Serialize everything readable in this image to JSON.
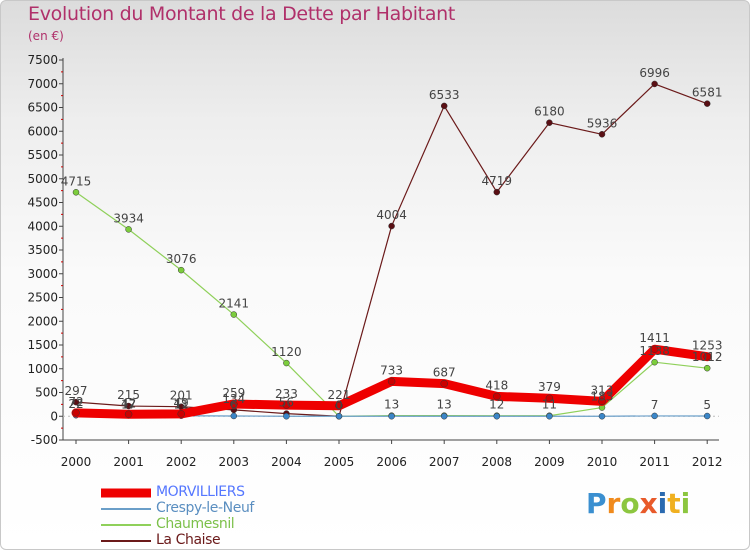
{
  "header": {
    "title": "Evolution du Montant de la Dette par Habitant",
    "unit": "(en €)"
  },
  "brand": {
    "letters": [
      "P",
      "r",
      "o",
      "x",
      "i",
      "t",
      "i"
    ],
    "colors": [
      "#3a8fd0",
      "#f08a1c",
      "#8cc63f",
      "#e85a2a",
      "#2a6ab0",
      "#f0b020",
      "#8cc63f"
    ]
  },
  "chart_data": {
    "type": "line",
    "title": "Evolution du Montant de la Dette par Habitant",
    "subtitle": "(en €)",
    "xlabel": "",
    "ylabel": "",
    "ylim": [
      -500,
      7500
    ],
    "y_ticks": [
      -500,
      0,
      500,
      1000,
      1500,
      2000,
      2500,
      3000,
      3500,
      4000,
      4500,
      5000,
      5500,
      6000,
      6500,
      7000,
      7500
    ],
    "grid": false,
    "legend_position": "bottom-left",
    "categories": [
      "2000",
      "2001",
      "2002",
      "2003",
      "2004",
      "2005",
      "2006",
      "2007",
      "2008",
      "2009",
      "2010",
      "2011",
      "2012"
    ],
    "series": [
      {
        "name": "La Chaise",
        "color": "#6b1a1a",
        "values": [
          297,
          215,
          201,
          134,
          56,
          0,
          4004,
          6533,
          4719,
          6180,
          5936,
          6996,
          6581
        ],
        "labels": [
          "297",
          "215",
          "201",
          "134",
          "56",
          "0",
          "4004",
          "6533",
          "4719",
          "6180",
          "5936",
          "6996",
          "6581"
        ]
      },
      {
        "name": "Chaumesnil",
        "color": "#8fd05a",
        "values": [
          4715,
          3934,
          3076,
          2141,
          1120,
          0,
          13,
          13,
          12,
          11,
          183,
          1138,
          1012
        ],
        "labels": [
          "4715",
          "3934",
          "3076",
          "2141",
          "1120",
          "0",
          "13",
          "13",
          "12",
          "11",
          "183",
          "1138",
          "1012"
        ]
      },
      {
        "name": "Crespy-le-Neuf",
        "color": "#6a9ec8",
        "values": [
          22,
          17,
          11,
          6,
          0,
          0,
          0,
          0,
          0,
          0,
          0,
          7,
          5
        ],
        "labels": [
          "22",
          "17",
          "11",
          "6",
          "",
          "",
          "",
          "",
          "",
          "",
          "",
          "7",
          "5"
        ]
      },
      {
        "name": "MORVILLIERS",
        "color": "#ee0000",
        "values": [
          72,
          42,
          49,
          259,
          233,
          221,
          733,
          687,
          418,
          379,
          313,
          1411,
          1253
        ],
        "labels": [
          "72",
          "42",
          "49",
          "259",
          "233",
          "221",
          "733",
          "687",
          "418",
          "379",
          "313",
          "1411",
          "1253"
        ]
      }
    ],
    "legend_order": [
      "MORVILLIERS",
      "Crespy-le-Neuf",
      "Chaumesnil",
      "La Chaise"
    ]
  }
}
